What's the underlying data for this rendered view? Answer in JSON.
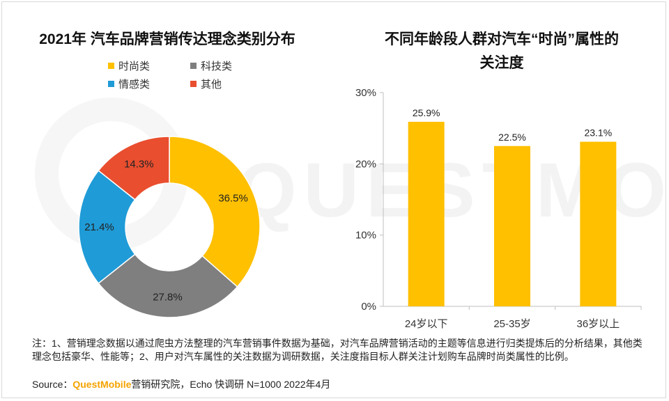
{
  "chart_data": [
    {
      "type": "pie",
      "title": "2021年 汽车品牌营销传达理念类别分布",
      "donut": true,
      "legend_position": "top",
      "legend": [
        "时尚类",
        "科技类",
        "情感类",
        "其他"
      ],
      "slices": [
        {
          "name": "时尚类",
          "value": 36.5,
          "label": "36.5%",
          "color": "#ffc000"
        },
        {
          "name": "科技类",
          "value": 27.8,
          "label": "27.8%",
          "color": "#7f7f7f"
        },
        {
          "name": "情感类",
          "value": 21.4,
          "label": "21.4%",
          "color": "#1f9bd7"
        },
        {
          "name": "其他",
          "value": 14.3,
          "label": "14.3%",
          "color": "#e94e2f"
        }
      ]
    },
    {
      "type": "bar",
      "title": "不同年龄段人群对汽车“时尚”属性的关注度",
      "title_lines": [
        "不同年龄段人群对汽车“时尚”属性的",
        "关注度"
      ],
      "categories": [
        "24岁以下",
        "25-35岁",
        "36岁以上"
      ],
      "values": [
        25.9,
        22.5,
        23.1
      ],
      "labels": [
        "25.9%",
        "22.5%",
        "23.1%"
      ],
      "ylim": [
        0,
        30
      ],
      "yticks": [
        "0%",
        "10%",
        "20%",
        "30%"
      ],
      "grid": false,
      "bar_color": "#ffc000"
    }
  ],
  "note": "注：1、营销理念数据以通过爬虫方法整理的汽车营销事件数据为基础，对汽车品牌营销活动的主题等信息进行归类提炼后的分析结果，其他类理念包括豪华、性能等；2、用户对汽车属性的关注数据为调研数据，关注度指目标人群关注计划购车品牌时尚类属性的比例。",
  "source": {
    "prefix": "Source：",
    "brand": "QuestMobile",
    "rest": "营销研究院，Echo 快调研 N=1000 2022年4月"
  },
  "watermark": "QUESTMOBILE"
}
